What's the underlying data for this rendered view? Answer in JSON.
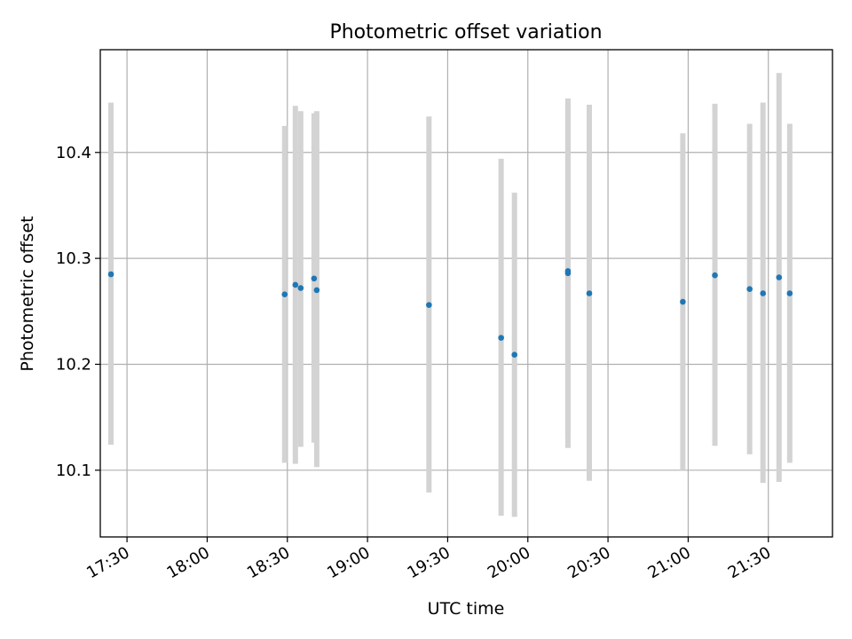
{
  "chart_data": {
    "type": "scatter",
    "title": "Photometric offset variation",
    "xlabel": "UTC time",
    "ylabel": "Photometric offset",
    "x_is_time": true,
    "xlim": [
      "17:20",
      "21:54"
    ],
    "ylim": [
      10.037,
      10.497
    ],
    "xticks": [
      "17:30",
      "18:00",
      "18:30",
      "19:00",
      "19:30",
      "20:00",
      "20:30",
      "21:00",
      "21:30"
    ],
    "yticks": [
      10.1,
      10.2,
      10.3,
      10.4
    ],
    "ytick_labels": [
      "10.1",
      "10.2",
      "10.3",
      "10.4"
    ],
    "grid": true,
    "colors": {
      "point": "#1f77b4",
      "errorbar": "#d3d3d3"
    },
    "series": [
      {
        "points": [
          {
            "x": "17:24",
            "y": 10.285,
            "ylow": 10.124,
            "yhigh": 10.447
          },
          {
            "x": "18:29",
            "y": 10.266,
            "ylow": 10.107,
            "yhigh": 10.425
          },
          {
            "x": "18:33",
            "y": 10.275,
            "ylow": 10.106,
            "yhigh": 10.444
          },
          {
            "x": "18:35",
            "y": 10.272,
            "ylow": 10.122,
            "yhigh": 10.439
          },
          {
            "x": "18:40",
            "y": 10.281,
            "ylow": 10.126,
            "yhigh": 10.437
          },
          {
            "x": "18:41",
            "y": 10.27,
            "ylow": 10.103,
            "yhigh": 10.439
          },
          {
            "x": "19:23",
            "y": 10.256,
            "ylow": 10.079,
            "yhigh": 10.434
          },
          {
            "x": "19:50",
            "y": 10.225,
            "ylow": 10.057,
            "yhigh": 10.394
          },
          {
            "x": "19:55",
            "y": 10.209,
            "ylow": 10.056,
            "yhigh": 10.362
          },
          {
            "x": "20:15",
            "y": 10.286,
            "ylow": 10.121,
            "yhigh": 10.451
          },
          {
            "x": "20:15",
            "y": 10.288,
            "ylow": 10.131,
            "yhigh": 10.444
          },
          {
            "x": "20:23",
            "y": 10.267,
            "ylow": 10.09,
            "yhigh": 10.445
          },
          {
            "x": "20:58",
            "y": 10.259,
            "ylow": 10.1,
            "yhigh": 10.418
          },
          {
            "x": "21:10",
            "y": 10.284,
            "ylow": 10.123,
            "yhigh": 10.446
          },
          {
            "x": "21:23",
            "y": 10.271,
            "ylow": 10.115,
            "yhigh": 10.427
          },
          {
            "x": "21:28",
            "y": 10.267,
            "ylow": 10.088,
            "yhigh": 10.447
          },
          {
            "x": "21:34",
            "y": 10.282,
            "ylow": 10.089,
            "yhigh": 10.475
          },
          {
            "x": "21:38",
            "y": 10.267,
            "ylow": 10.107,
            "yhigh": 10.427
          }
        ]
      }
    ]
  }
}
